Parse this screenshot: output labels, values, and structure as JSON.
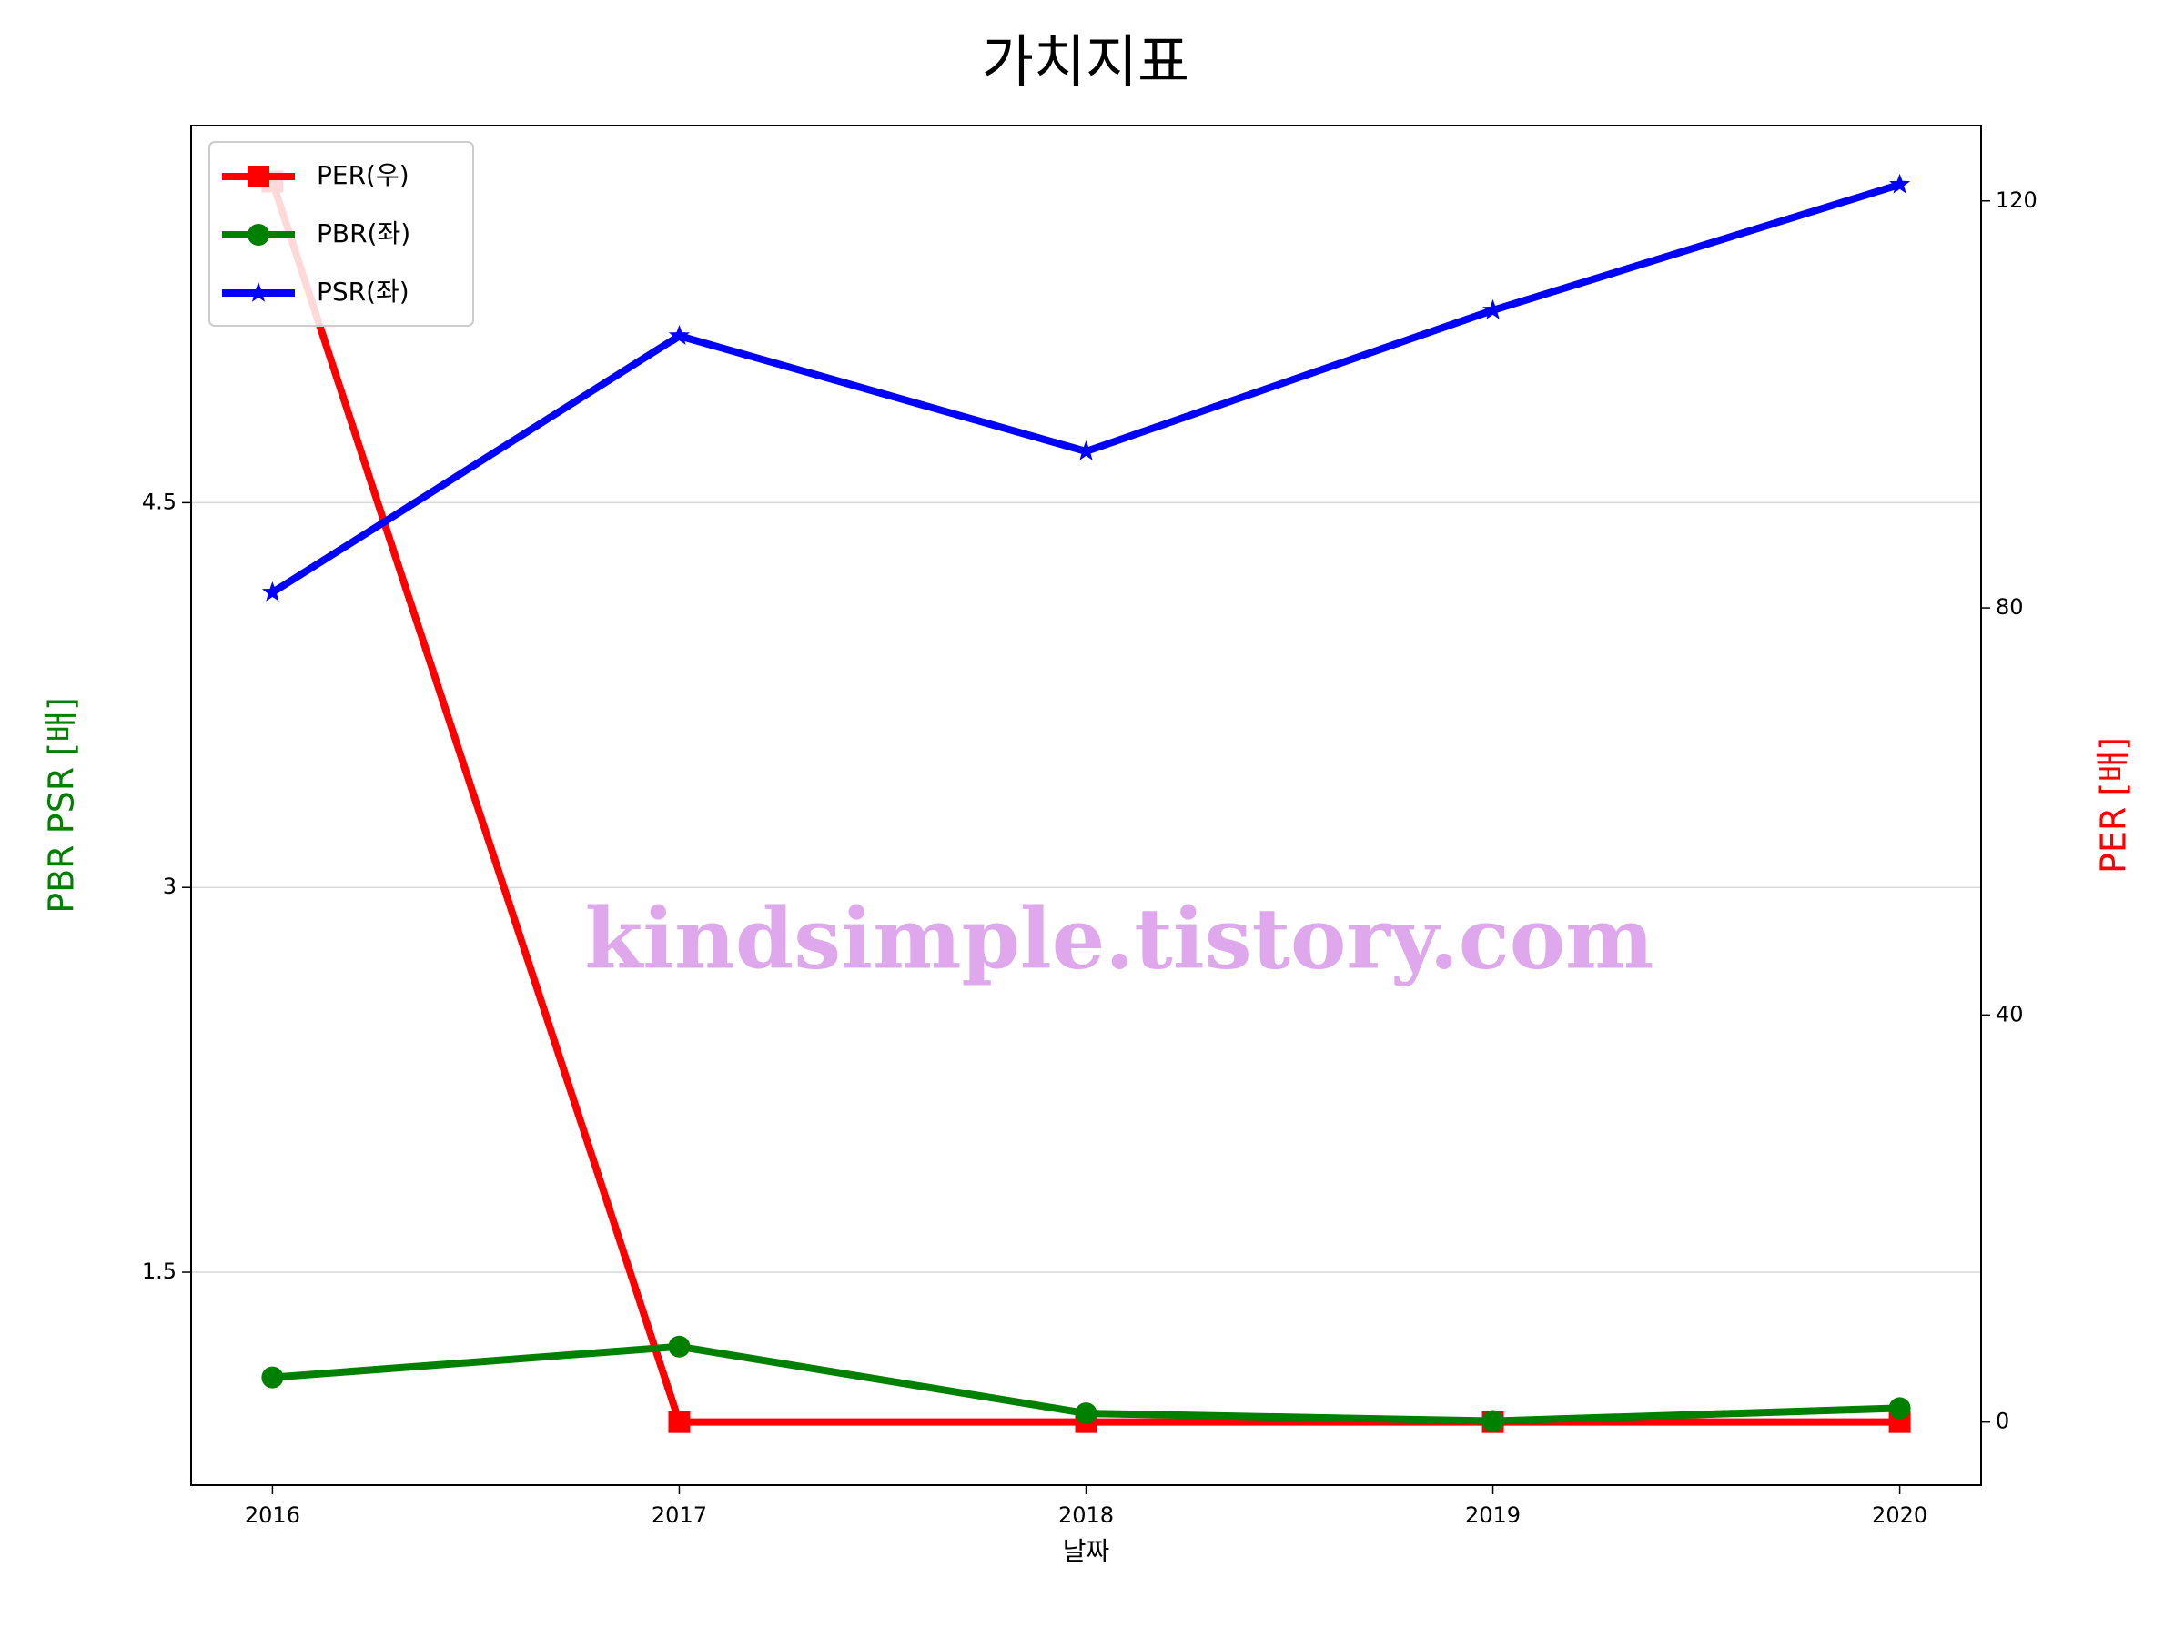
{
  "chart_data": {
    "type": "line",
    "title": "가치지표",
    "xlabel": "날짜",
    "ylabel": "PBR PSR [배]",
    "y2label": "PER [배]",
    "ylabel_color": "#008000",
    "y2label_color": "#ff0000",
    "annotation": "kindsimple.tistory.com",
    "annotation_color": "#e0a8ec",
    "x": [
      2016,
      2017,
      2018,
      2019,
      2020
    ],
    "xlim": [
      2015.8,
      2020.2
    ],
    "xticks": [
      2016,
      2017,
      2018,
      2019,
      2020
    ],
    "ylim": [
      0.67,
      5.97
    ],
    "yticks": [
      1.5,
      3.0,
      4.5
    ],
    "y2lim": [
      -6.2,
      127.4
    ],
    "y2ticks": [
      0,
      40,
      80,
      120
    ],
    "grid": true,
    "legend": "upper-left",
    "series": [
      {
        "name": "PER(우)",
        "color": "#ff0000",
        "marker": "square",
        "axis": "y2",
        "values": [
          121.9,
          0,
          0,
          0,
          0
        ]
      },
      {
        "name": "PBR(좌)",
        "color": "#008000",
        "marker": "circle",
        "values": [
          1.09,
          1.21,
          0.95,
          0.92,
          0.97
        ]
      },
      {
        "name": "PSR(좌)",
        "color": "#0000ff",
        "marker": "star",
        "values": [
          4.15,
          5.15,
          4.7,
          5.25,
          5.74
        ]
      }
    ]
  }
}
